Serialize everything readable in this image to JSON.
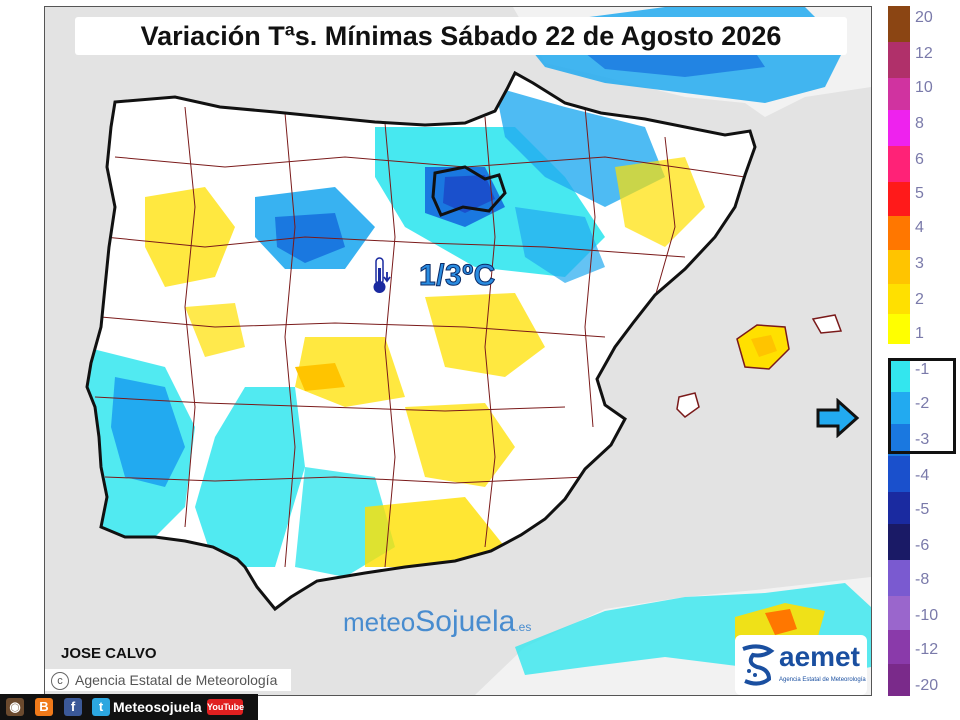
{
  "title": "Variación Tªs. Mínimas Sábado 22 de Agosto 2026",
  "center_value": "1/3ºC",
  "author": "JOSE CALVO",
  "agency_credit": "Agencia Estatal de Meteorología",
  "watermark": {
    "part1": "meteo",
    "part2": "Sojuela",
    "part3": ".es"
  },
  "aemet": {
    "name": "aemet",
    "subtitle": "Agencia Estatal de Meteorología"
  },
  "social": {
    "handle": "Meteosojuela",
    "youtube": "YouTube"
  },
  "legend": {
    "highlighted_range": [
      "-1",
      "-2",
      "-3"
    ],
    "entries": [
      {
        "label": "20",
        "color": "#8b4513"
      },
      {
        "label": "12",
        "color": "#b0306a"
      },
      {
        "label": "10",
        "color": "#d033a0"
      },
      {
        "label": "8",
        "color": "#ee22ee"
      },
      {
        "label": "6",
        "color": "#ff2277"
      },
      {
        "label": "5",
        "color": "#ff1a1a"
      },
      {
        "label": "4",
        "color": "#ff7700"
      },
      {
        "label": "3",
        "color": "#ffc400"
      },
      {
        "label": "2",
        "color": "#ffe000"
      },
      {
        "label": "1",
        "color": "#ffff00"
      },
      {
        "label": "-1",
        "color": "#33e6ee"
      },
      {
        "label": "-2",
        "color": "#22aaf0"
      },
      {
        "label": "-3",
        "color": "#1a78e0"
      },
      {
        "label": "-4",
        "color": "#1a50cc"
      },
      {
        "label": "-5",
        "color": "#1a2aa0"
      },
      {
        "label": "-6",
        "color": "#1a1a66"
      },
      {
        "label": "-8",
        "color": "#7a5ad0"
      },
      {
        "label": "-10",
        "color": "#9a66cc"
      },
      {
        "label": "-12",
        "color": "#8a3aaa"
      },
      {
        "label": "-20",
        "color": "#7a2a8a"
      }
    ]
  },
  "colors": {
    "sea": "#e3e3e3",
    "land": "#ffffff",
    "coast": "#111111",
    "borders": "#7a1a1a",
    "label_blue": "#2a8ce0"
  }
}
